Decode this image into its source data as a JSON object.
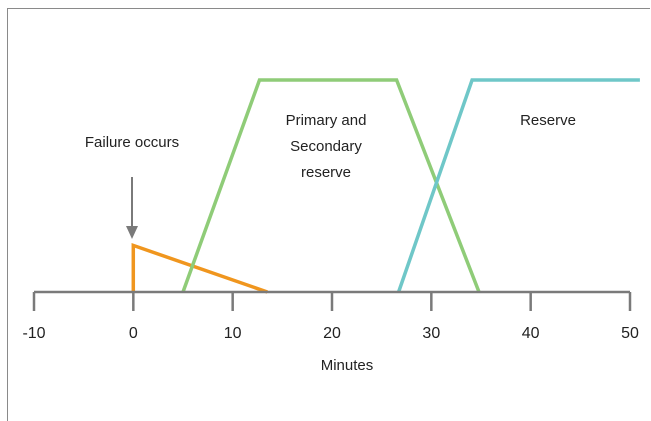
{
  "chart_data": {
    "type": "line",
    "xlabel": "Minutes",
    "xlim": [
      -10,
      50
    ],
    "xticks": [
      -10,
      0,
      10,
      20,
      30,
      40,
      50
    ],
    "ylim": [
      0,
      1
    ],
    "grid": false,
    "legend": "none",
    "series": [
      {
        "name": "Failure occurs",
        "color": "#f0961e",
        "points": [
          [
            0,
            0
          ],
          [
            0,
            0.22
          ],
          [
            13.5,
            0
          ]
        ]
      },
      {
        "name": "Primary and Secondary reserve",
        "color": "#8fcc78",
        "points": [
          [
            5,
            0
          ],
          [
            12.7,
            1
          ],
          [
            26.5,
            1
          ],
          [
            34.8,
            0
          ]
        ]
      },
      {
        "name": "Reserve",
        "color": "#6fc7c8",
        "points": [
          [
            26.7,
            0
          ],
          [
            34.1,
            1
          ],
          [
            51,
            1
          ]
        ]
      }
    ],
    "annotations": [
      {
        "text": "Failure occurs",
        "arrow_at_x": 0
      },
      {
        "text": [
          "Primary and",
          "Secondary",
          "reserve"
        ]
      },
      {
        "text": "Reserve"
      }
    ]
  }
}
